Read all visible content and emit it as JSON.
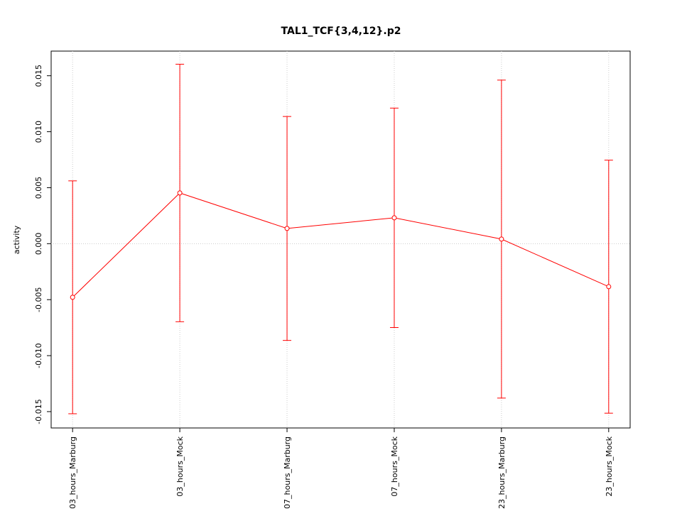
{
  "chart_data": {
    "type": "line",
    "title": "TAL1_TCF{3,4,12}.p2",
    "y_label": "activity",
    "categories": [
      "03_hours_Marburg",
      "03_hours_Mock",
      "07_hours_Marburg",
      "07_hours_Mock",
      "23_hours_Marburg",
      "23_hours_Mock"
    ],
    "series": [
      {
        "color": "#ff0000",
        "values": [
          -0.00479,
          0.00453,
          0.00136,
          0.00231,
          0.00041,
          -0.00384
        ],
        "errors": [
          0.0104,
          0.0115,
          0.01,
          0.0098,
          0.0142,
          0.0113
        ]
      }
    ],
    "ylim": [
      -0.01646,
      0.0172
    ],
    "yticks": [
      -0.015,
      {
        "value": -0.01,
        "label": "-0.010"
      },
      -0.005,
      {
        "value": 0,
        "label": "0.000"
      },
      0.005,
      {
        "value": 0.01,
        "label": "0.010"
      },
      0.015
    ],
    "reference_line": 0,
    "grid": true
  }
}
